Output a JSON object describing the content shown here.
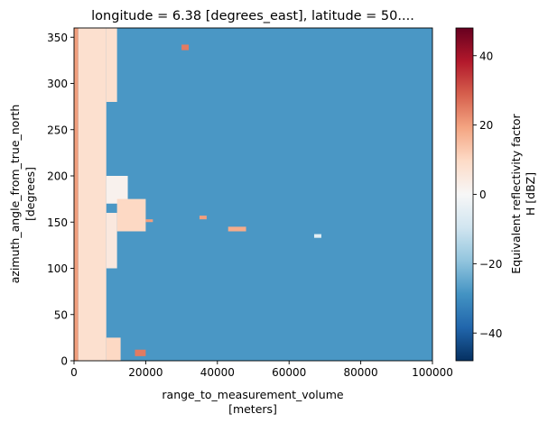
{
  "chart_data": {
    "type": "heatmap",
    "title": "longitude = 6.38 [degrees_east], latitude = 50....",
    "x": {
      "label_line1": "range_to_measurement_volume",
      "label_line2": "[meters]",
      "range": [
        0,
        100000
      ],
      "ticks": [
        0,
        20000,
        40000,
        60000,
        80000,
        100000
      ],
      "tick_labels": [
        "0",
        "20000",
        "40000",
        "60000",
        "80000",
        "100000"
      ]
    },
    "y": {
      "label_line1": "azimuth_angle_from_true_north",
      "label_line2": "[degrees]",
      "range": [
        0,
        360
      ],
      "ticks": [
        0,
        50,
        100,
        150,
        200,
        250,
        300,
        350
      ],
      "tick_labels": [
        "0",
        "50",
        "100",
        "150",
        "200",
        "250",
        "300",
        "350"
      ]
    },
    "colorbar": {
      "label_line1": "Equivalent reflectivity factor",
      "label_line2": "H [dBZ]",
      "range": [
        -48,
        48
      ],
      "ticks": [
        -40,
        -20,
        0,
        20,
        40
      ],
      "tick_labels": [
        "−40",
        "−20",
        "0",
        "20",
        "40"
      ],
      "colormap": "RdBu_r",
      "colors": [
        "#053061",
        "#2166ac",
        "#4393c3",
        "#92c5de",
        "#d1e5f0",
        "#f7f7f7",
        "#fddbc7",
        "#f4a582",
        "#d6604d",
        "#b2182b",
        "#67001f"
      ]
    },
    "background_value_dbz": -28,
    "grid": false,
    "echo_regions": [
      {
        "r": [
          0,
          1200
        ],
        "az": [
          0,
          360
        ],
        "dbz": 20
      },
      {
        "r": [
          1200,
          9000
        ],
        "az": [
          0,
          360
        ],
        "dbz": 8
      },
      {
        "r": [
          9000,
          13000
        ],
        "az": [
          0,
          25
        ],
        "dbz": 10
      },
      {
        "r": [
          9000,
          12000
        ],
        "az": [
          100,
          160
        ],
        "dbz": 5
      },
      {
        "r": [
          9000,
          15000
        ],
        "az": [
          170,
          200
        ],
        "dbz": 2
      },
      {
        "r": [
          9000,
          12000
        ],
        "az": [
          280,
          360
        ],
        "dbz": 8
      },
      {
        "r": [
          12000,
          20000
        ],
        "az": [
          140,
          175
        ],
        "dbz": 10
      },
      {
        "r": [
          17000,
          20000
        ],
        "az": [
          5,
          12
        ],
        "dbz": 25
      },
      {
        "r": [
          20000,
          22000
        ],
        "az": [
          150,
          153
        ],
        "dbz": 20
      },
      {
        "r": [
          30000,
          32000
        ],
        "az": [
          336,
          342
        ],
        "dbz": 25
      },
      {
        "r": [
          35000,
          37000
        ],
        "az": [
          153,
          157
        ],
        "dbz": 20
      },
      {
        "r": [
          43000,
          48000
        ],
        "az": [
          140,
          145
        ],
        "dbz": 18
      },
      {
        "r": [
          67000,
          69000
        ],
        "az": [
          133,
          137
        ],
        "dbz": -5
      }
    ]
  }
}
